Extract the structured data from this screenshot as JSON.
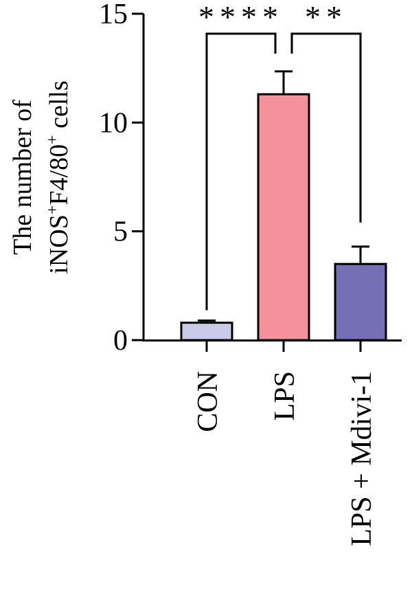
{
  "chart_data": {
    "type": "bar",
    "ylabel_line1": "The number of",
    "ylabel_line2": {
      "parts": [
        "iNOS",
        "+",
        "F4/80",
        "+",
        " cells"
      ]
    },
    "categories": [
      "CON",
      "LPS",
      "LPS + Mdivi-1"
    ],
    "values": [
      0.8,
      11.3,
      3.5
    ],
    "errors": [
      0.1,
      1.05,
      0.8
    ],
    "bar_colors": [
      "#cbcae8",
      "#f4919b",
      "#7570b5"
    ],
    "ylim": [
      0,
      15
    ],
    "yticks": [
      0,
      5,
      10,
      15
    ],
    "significance": [
      {
        "from": 0,
        "to": 1,
        "label": "****"
      },
      {
        "from": 1,
        "to": 2,
        "label": "**"
      }
    ],
    "grid": false,
    "legend": "none"
  }
}
